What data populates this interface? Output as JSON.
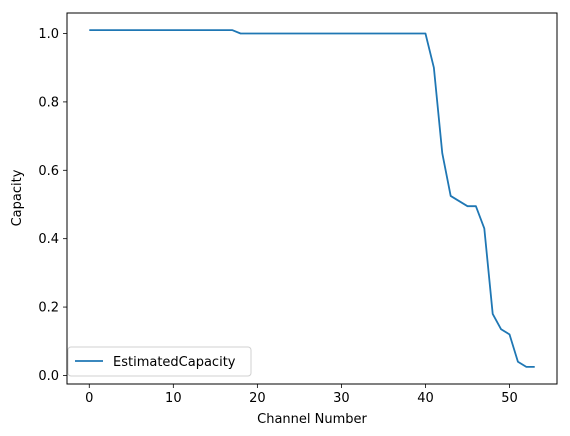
{
  "chart_data": {
    "type": "line",
    "title": "",
    "xlabel": "Channel Number",
    "ylabel": "Capacity",
    "xlim": [
      -2.65,
      55.65
    ],
    "ylim": [
      -0.025,
      1.06
    ],
    "xticks": [
      0,
      10,
      20,
      30,
      40,
      50
    ],
    "yticks": [
      0.0,
      0.2,
      0.4,
      0.6,
      0.8,
      1.0
    ],
    "ytick_labels": [
      "0.0",
      "0.2",
      "0.4",
      "0.6",
      "0.8",
      "1.0"
    ],
    "grid": false,
    "legend_position": "lower-left",
    "series": [
      {
        "name": "EstimatedCapacity",
        "color": "#1f77b4",
        "x": [
          0,
          1,
          2,
          3,
          4,
          5,
          6,
          7,
          8,
          9,
          10,
          11,
          12,
          13,
          14,
          15,
          16,
          17,
          18,
          19,
          20,
          21,
          22,
          23,
          24,
          25,
          26,
          27,
          28,
          29,
          30,
          31,
          32,
          33,
          34,
          35,
          36,
          37,
          38,
          39,
          40,
          41,
          42,
          43,
          44,
          45,
          46,
          47,
          48,
          49,
          50,
          51,
          52,
          53
        ],
        "y": [
          1.01,
          1.01,
          1.01,
          1.01,
          1.01,
          1.01,
          1.01,
          1.01,
          1.01,
          1.01,
          1.01,
          1.01,
          1.01,
          1.01,
          1.01,
          1.01,
          1.01,
          1.01,
          1.0,
          1.0,
          1.0,
          1.0,
          1.0,
          1.0,
          1.0,
          1.0,
          1.0,
          1.0,
          1.0,
          1.0,
          1.0,
          1.0,
          1.0,
          1.0,
          1.0,
          1.0,
          1.0,
          1.0,
          1.0,
          1.0,
          1.0,
          0.9,
          0.65,
          0.525,
          0.51,
          0.495,
          0.495,
          0.43,
          0.18,
          0.135,
          0.12,
          0.04,
          0.025,
          0.025
        ]
      }
    ]
  }
}
